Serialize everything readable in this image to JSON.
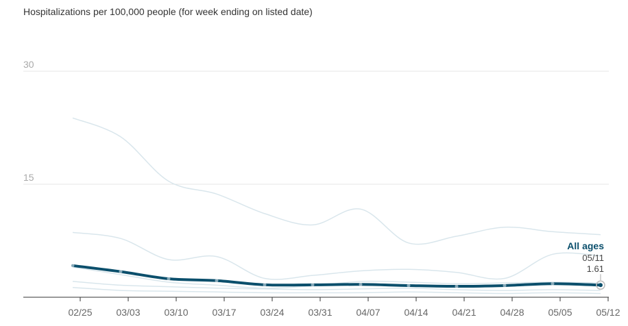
{
  "chart_data": {
    "type": "line",
    "title": "Hospitalizations per 100,000 people (for week ending on listed date)",
    "xlabel": "",
    "ylabel": "",
    "ylim": [
      0,
      30
    ],
    "yticks": [
      "30",
      "15"
    ],
    "ytick_values": [
      30,
      15
    ],
    "xtick_labels": [
      "02/25",
      "03/03",
      "03/10",
      "03/17",
      "03/24",
      "03/31",
      "04/07",
      "04/14",
      "04/21",
      "04/28",
      "05/05",
      "05/12"
    ],
    "x": [
      "02/24",
      "03/02",
      "03/09",
      "03/16",
      "03/23",
      "03/30",
      "04/06",
      "04/13",
      "04/20",
      "04/27",
      "05/04",
      "05/11"
    ],
    "grid": true,
    "highlight_series": "All ages",
    "series": [
      {
        "name": "All ages",
        "highlight": true,
        "values": [
          4.2,
          3.4,
          2.45,
          2.2,
          1.65,
          1.65,
          1.7,
          1.55,
          1.45,
          1.55,
          1.8,
          1.61
        ]
      },
      {
        "name": "background-1",
        "values": [
          23.8,
          21.3,
          15.4,
          13.7,
          11.1,
          9.6,
          11.7,
          7.2,
          8.1,
          9.3,
          8.7,
          8.3
        ]
      },
      {
        "name": "background-2",
        "values": [
          8.6,
          7.8,
          5.0,
          5.4,
          2.5,
          2.9,
          3.5,
          3.7,
          3.3,
          2.5,
          5.7,
          5.5
        ]
      },
      {
        "name": "background-3",
        "values": [
          4.0,
          3.0,
          2.0,
          1.6,
          1.2,
          1.5,
          2.1,
          2.0,
          1.8,
          1.9,
          2.0,
          1.9
        ]
      },
      {
        "name": "background-4",
        "values": [
          2.1,
          1.6,
          1.4,
          1.2,
          1.1,
          1.0,
          1.1,
          1.2,
          1.0,
          0.9,
          1.0,
          0.9
        ]
      },
      {
        "name": "background-5",
        "values": [
          1.3,
          0.9,
          0.8,
          0.7,
          0.6,
          0.6,
          0.6,
          0.7,
          0.6,
          0.5,
          0.6,
          0.5
        ]
      }
    ],
    "annotation": {
      "label": "All ages",
      "date": "05/11",
      "value": "1.61"
    }
  },
  "colors": {
    "highlight": "#0b4f6c",
    "background": "#d9e6ec",
    "grid": "#e6e6e6",
    "axis": "#333333"
  }
}
